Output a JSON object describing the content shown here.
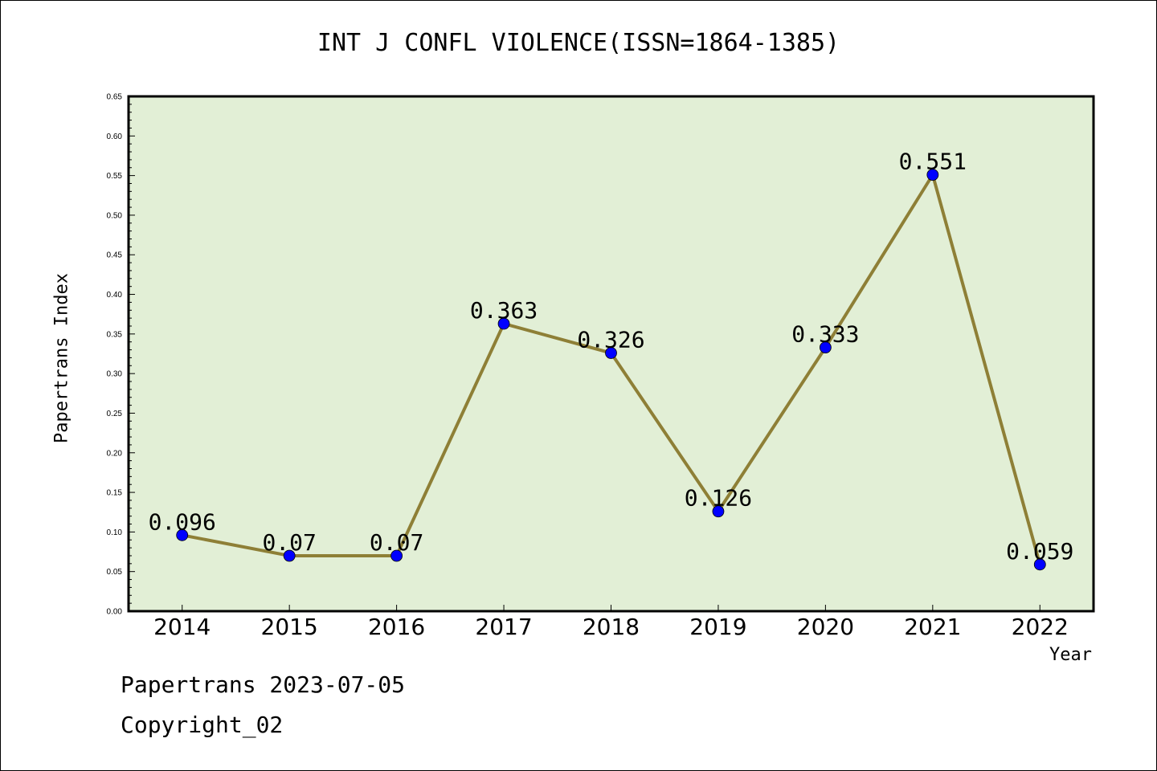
{
  "title": "INT J CONFL VIOLENCE(ISSN=1864-1385)",
  "footer": {
    "line1": "Papertrans 2023-07-05",
    "line2": "Copyright_02"
  },
  "colors": {
    "plot_background": "#e2efd6",
    "line": "#8e7f36",
    "marker": "#0000ff"
  },
  "chart_data": {
    "type": "line",
    "title": "INT J CONFL VIOLENCE(ISSN=1864-1385)",
    "xlabel": "Year",
    "ylabel": "Papertrans Index",
    "categories": [
      "2014",
      "2015",
      "2016",
      "2017",
      "2018",
      "2019",
      "2020",
      "2021",
      "2022"
    ],
    "values": [
      0.096,
      0.07,
      0.07,
      0.363,
      0.326,
      0.126,
      0.333,
      0.551,
      0.059
    ],
    "data_labels": [
      "0.096",
      "0.07",
      "0.07",
      "0.363",
      "0.326",
      "0.126",
      "0.333",
      "0.551",
      "0.059"
    ],
    "ylim": [
      0,
      0.65
    ],
    "yticks": [
      "0.00",
      "0.05",
      "0.10",
      "0.15",
      "0.20",
      "0.25",
      "0.30",
      "0.35",
      "0.40",
      "0.45",
      "0.50",
      "0.55",
      "0.60",
      "0.65"
    ],
    "grid": false,
    "legend": "none"
  }
}
